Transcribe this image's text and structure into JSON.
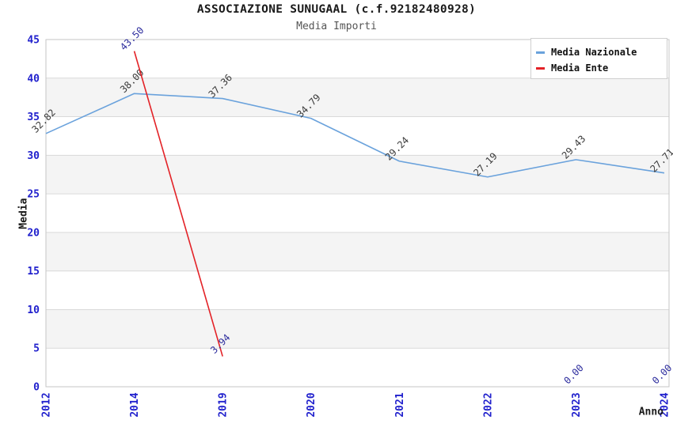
{
  "header": {
    "title": "ASSOCIAZIONE SUNUGAAL (c.f.92182480928)",
    "subtitle": "Media Importi"
  },
  "chart_data": {
    "type": "line",
    "title": "ASSOCIAZIONE SUNUGAAL (c.f.92182480928)",
    "subtitle": "Media Importi",
    "xlabel": "Anno",
    "ylabel": "Media",
    "categories": [
      "2012",
      "2014",
      "2019",
      "2020",
      "2021",
      "2022",
      "2023",
      "2024"
    ],
    "ylim": [
      0,
      45
    ],
    "ytick_step": 5,
    "yticks": [
      0,
      5,
      10,
      15,
      20,
      25,
      30,
      35,
      40,
      45
    ],
    "grid": true,
    "legend_position": "top-right",
    "axis_color": "#2121cd",
    "band_color": "#f4f4f4",
    "grid_color": "#d9d9d9",
    "border_color": "#c6c6c6",
    "series": [
      {
        "name": "Media Nazionale",
        "color": "#6aa2dc",
        "label_color": "#3a3a3a",
        "values": [
          32.82,
          38.0,
          37.36,
          34.79,
          29.24,
          27.19,
          29.43,
          27.71
        ],
        "labels": [
          "32.82",
          "38.00",
          "37.36",
          "34.79",
          "29.24",
          "27.19",
          "29.43",
          "27.71"
        ]
      },
      {
        "name": "Media Ente",
        "color": "#e32227",
        "label_color": "#2e2e9e",
        "values": [
          null,
          43.5,
          3.94,
          null,
          null,
          null,
          0.0,
          0.0
        ],
        "labels": [
          null,
          "43.50",
          "3.94",
          null,
          null,
          null,
          "0.00",
          "0.00"
        ],
        "drawn_segments": [
          [
            1,
            2
          ]
        ]
      }
    ]
  }
}
